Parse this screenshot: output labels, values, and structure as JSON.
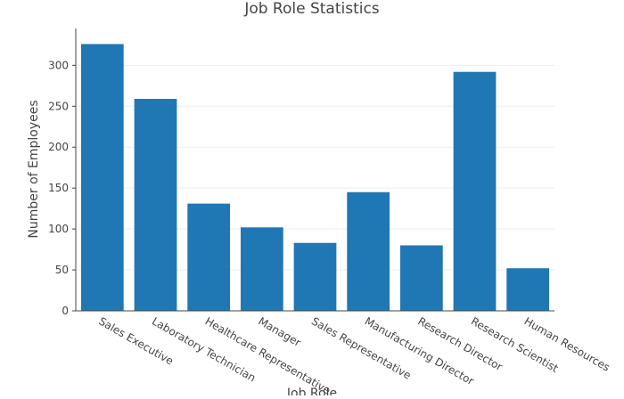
{
  "chart_data": {
    "type": "bar",
    "title": "Job Role Statistics",
    "xlabel": "Job Role",
    "ylabel": "Number of Employees",
    "categories": [
      "Sales Executive",
      "Laboratory Technician",
      "Healthcare Representative",
      "Manager",
      "Sales Representative",
      "Manufacturing Director",
      "Research Director",
      "Research Scientist",
      "Human Resources"
    ],
    "values": [
      326,
      259,
      131,
      102,
      83,
      145,
      80,
      292,
      52
    ],
    "ylim": [
      0,
      345
    ],
    "yticks": [
      0,
      50,
      100,
      150,
      200,
      250,
      300
    ],
    "grid": true,
    "legend": "none",
    "bar_color": "#1f77b4",
    "grid_color": "#eeeeee",
    "axis_color": "#444444",
    "text_color": "#444444"
  }
}
